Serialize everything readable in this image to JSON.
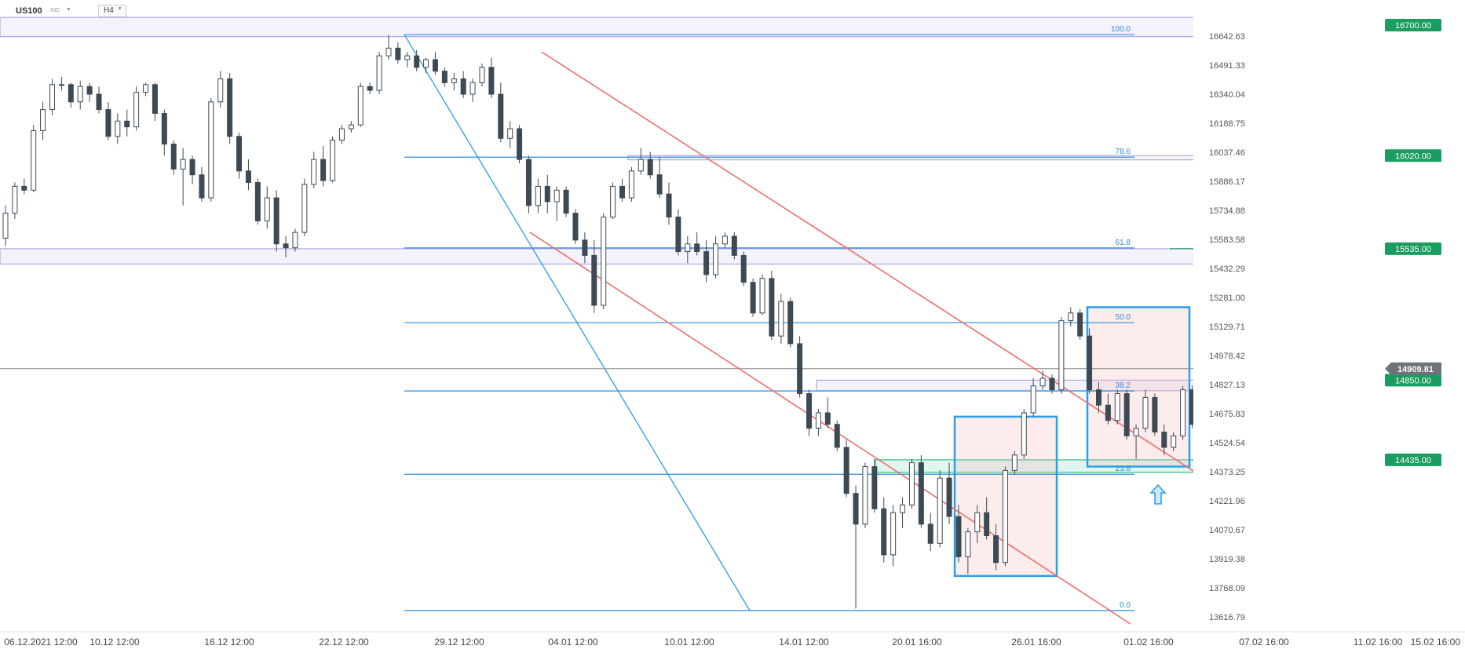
{
  "header": {
    "symbol": "US100",
    "market": "IND",
    "timeframe": "H4"
  },
  "chart_data": {
    "type": "candlestick",
    "ylim": [
      13616.79,
      16700
    ],
    "price_axis_ticks": [
      "16642.63",
      "16491.33",
      "16340.04",
      "16188.75",
      "16037.46",
      "15886.17",
      "15734.88",
      "15583.58",
      "15432.29",
      "15281.00",
      "15129.71",
      "14978.42",
      "14827.13",
      "14675.83",
      "14524.54",
      "14373.25",
      "14221.96",
      "14070.67",
      "13919.38",
      "13768.09",
      "13616.79"
    ],
    "time_axis_labels": [
      "06.12.2021 12:00",
      "10.12 12:00",
      "16.12 12:00",
      "22.12 12:00",
      "29.12 12:00",
      "04.01 12:00",
      "10.01 12:00",
      "14.01 12:00",
      "20.01 16:00",
      "26.01 16:00",
      "01.02 16:00",
      "07.02 16:00",
      "11.02 16:00",
      "15.02 16:00"
    ],
    "price_tags": [
      {
        "label": "16700.00",
        "value": 16700,
        "color": "#1a9d5f"
      },
      {
        "label": "16020.00",
        "value": 16020,
        "color": "#1a9d5f"
      },
      {
        "label": "15535.00",
        "value": 15535,
        "color": "#1a9d5f"
      },
      {
        "label": "14850.00",
        "value": 14850,
        "color": "#1a9d5f"
      },
      {
        "label": "14435.00",
        "value": 14435,
        "color": "#1a9d5f"
      }
    ],
    "current_price": {
      "label": "14909.81",
      "value": 14909.81,
      "color": "#6d7378"
    },
    "fibonacci": {
      "high": 16650,
      "low": 13650,
      "levels": [
        {
          "label": "100.0",
          "value": 16650
        },
        {
          "label": "78.6",
          "value": 16012
        },
        {
          "label": "61.8",
          "value": 15539
        },
        {
          "label": "50.0",
          "value": 15150
        },
        {
          "label": "38.2",
          "value": 14794
        },
        {
          "label": "23.6",
          "value": 14360
        },
        {
          "label": "0.0",
          "value": 13650
        }
      ]
    },
    "zones": [
      {
        "label": "resistance 16700",
        "from": 16640,
        "to": 16740,
        "color": "#b3a6e6"
      },
      {
        "label": "resistance 16020",
        "from": 15998,
        "to": 16020,
        "color": "#b3a6e6"
      },
      {
        "label": "resistance 15535",
        "from": 15455,
        "to": 15535,
        "color": "#b3a6e6"
      },
      {
        "label": "support 14850",
        "from": 14795,
        "to": 14850,
        "color": "#b3a6e6"
      },
      {
        "label": "support 14435",
        "from": 14370,
        "to": 14435,
        "color": "#2fc08a"
      }
    ],
    "boxes": [
      {
        "from": "23.01",
        "to": "30.01",
        "high": 14660,
        "low": 13830
      },
      {
        "from": "31.01",
        "to": "05.02",
        "high": 15230,
        "low": 14400
      }
    ],
    "candles": [
      [
        15590,
        15760,
        15550,
        15720
      ],
      [
        15720,
        15880,
        15690,
        15860
      ],
      [
        15860,
        15900,
        15820,
        15840
      ],
      [
        15840,
        16180,
        15830,
        16150
      ],
      [
        16150,
        16300,
        16100,
        16260
      ],
      [
        16260,
        16420,
        16230,
        16390
      ],
      [
        16390,
        16430,
        16360,
        16390
      ],
      [
        16390,
        16400,
        16270,
        16300
      ],
      [
        16300,
        16410,
        16260,
        16380
      ],
      [
        16380,
        16400,
        16300,
        16340
      ],
      [
        16340,
        16380,
        16240,
        16260
      ],
      [
        16260,
        16300,
        16100,
        16120
      ],
      [
        16120,
        16240,
        16080,
        16200
      ],
      [
        16200,
        16260,
        16120,
        16170
      ],
      [
        16170,
        16380,
        16150,
        16350
      ],
      [
        16350,
        16400,
        16330,
        16390
      ],
      [
        16390,
        16400,
        16200,
        16240
      ],
      [
        16240,
        16260,
        16020,
        16080
      ],
      [
        16080,
        16100,
        15920,
        15950
      ],
      [
        15950,
        16060,
        15760,
        16000
      ],
      [
        16000,
        16020,
        15870,
        15920
      ],
      [
        15920,
        15960,
        15780,
        15800
      ],
      [
        15800,
        16320,
        15780,
        16300
      ],
      [
        16300,
        16460,
        16270,
        16420
      ],
      [
        16420,
        16450,
        16080,
        16120
      ],
      [
        16120,
        16140,
        15900,
        15940
      ],
      [
        15940,
        16000,
        15840,
        15880
      ],
      [
        15880,
        15900,
        15660,
        15680
      ],
      [
        15680,
        15860,
        15640,
        15800
      ],
      [
        15800,
        15840,
        15520,
        15560
      ],
      [
        15560,
        15600,
        15490,
        15540
      ],
      [
        15540,
        15640,
        15520,
        15620
      ],
      [
        15620,
        15900,
        15600,
        15870
      ],
      [
        15870,
        16040,
        15850,
        16000
      ],
      [
        16000,
        16070,
        15860,
        15890
      ],
      [
        15890,
        16120,
        15880,
        16100
      ],
      [
        16100,
        16180,
        16080,
        16160
      ],
      [
        16160,
        16200,
        16140,
        16180
      ],
      [
        16180,
        16400,
        16170,
        16380
      ],
      [
        16380,
        16400,
        16340,
        16360
      ],
      [
        16360,
        16560,
        16340,
        16540
      ],
      [
        16540,
        16650,
        16520,
        16580
      ],
      [
        16580,
        16610,
        16500,
        16520
      ],
      [
        16520,
        16560,
        16480,
        16540
      ],
      [
        16540,
        16570,
        16460,
        16480
      ],
      [
        16480,
        16530,
        16450,
        16520
      ],
      [
        16520,
        16560,
        16440,
        16460
      ],
      [
        16460,
        16480,
        16380,
        16400
      ],
      [
        16400,
        16450,
        16360,
        16420
      ],
      [
        16420,
        16460,
        16320,
        16340
      ],
      [
        16340,
        16420,
        16300,
        16400
      ],
      [
        16400,
        16500,
        16380,
        16480
      ],
      [
        16480,
        16530,
        16320,
        16340
      ],
      [
        16340,
        16400,
        16090,
        16110
      ],
      [
        16110,
        16200,
        16060,
        16160
      ],
      [
        16160,
        16180,
        15980,
        16000
      ],
      [
        16000,
        16020,
        15720,
        15760
      ],
      [
        15760,
        15900,
        15720,
        15860
      ],
      [
        15860,
        15920,
        15720,
        15780
      ],
      [
        15780,
        15860,
        15680,
        15840
      ],
      [
        15840,
        15860,
        15700,
        15720
      ],
      [
        15720,
        15740,
        15560,
        15580
      ],
      [
        15580,
        15620,
        15460,
        15500
      ],
      [
        15500,
        15580,
        15200,
        15240
      ],
      [
        15240,
        15720,
        15220,
        15700
      ],
      [
        15700,
        15880,
        15690,
        15860
      ],
      [
        15860,
        15900,
        15780,
        15800
      ],
      [
        15800,
        15960,
        15780,
        15940
      ],
      [
        15940,
        16060,
        15920,
        16000
      ],
      [
        16000,
        16040,
        15900,
        15920
      ],
      [
        15920,
        16010,
        15800,
        15820
      ],
      [
        15820,
        15880,
        15660,
        15700
      ],
      [
        15700,
        15740,
        15500,
        15520
      ],
      [
        15520,
        15600,
        15460,
        15560
      ],
      [
        15560,
        15620,
        15500,
        15520
      ],
      [
        15520,
        15580,
        15360,
        15400
      ],
      [
        15400,
        15600,
        15380,
        15560
      ],
      [
        15560,
        15620,
        15540,
        15600
      ],
      [
        15600,
        15620,
        15480,
        15500
      ],
      [
        15500,
        15520,
        15340,
        15360
      ],
      [
        15360,
        15380,
        15180,
        15200
      ],
      [
        15200,
        15400,
        15190,
        15380
      ],
      [
        15380,
        15420,
        15060,
        15080
      ],
      [
        15080,
        15300,
        15040,
        15260
      ],
      [
        15260,
        15280,
        15020,
        15040
      ],
      [
        15040,
        15080,
        14760,
        14780
      ],
      [
        14780,
        14800,
        14560,
        14600
      ],
      [
        14600,
        14700,
        14560,
        14680
      ],
      [
        14680,
        14760,
        14600,
        14620
      ],
      [
        14620,
        14640,
        14480,
        14500
      ],
      [
        14500,
        14540,
        14240,
        14260
      ],
      [
        14260,
        14300,
        13660,
        14100
      ],
      [
        14100,
        14420,
        14080,
        14400
      ],
      [
        14400,
        14440,
        14160,
        14180
      ],
      [
        14180,
        14240,
        13900,
        13940
      ],
      [
        13940,
        14200,
        13880,
        14160
      ],
      [
        14160,
        14240,
        14080,
        14200
      ],
      [
        14200,
        14440,
        14180,
        14420
      ],
      [
        14420,
        14460,
        14080,
        14100
      ],
      [
        14100,
        14160,
        13960,
        14000
      ],
      [
        14000,
        14380,
        13980,
        14340
      ],
      [
        14340,
        14420,
        14100,
        14140
      ],
      [
        14140,
        14200,
        13900,
        13930
      ],
      [
        13930,
        14080,
        13840,
        14060
      ],
      [
        14060,
        14200,
        14000,
        14160
      ],
      [
        14160,
        14240,
        14020,
        14040
      ],
      [
        14040,
        14100,
        13860,
        13900
      ],
      [
        13900,
        14400,
        13880,
        14380
      ],
      [
        14380,
        14480,
        14360,
        14460
      ],
      [
        14460,
        14700,
        14440,
        14680
      ],
      [
        14680,
        14860,
        14660,
        14820
      ],
      [
        14820,
        14900,
        14800,
        14860
      ],
      [
        14860,
        14880,
        14780,
        14800
      ],
      [
        14800,
        15180,
        14780,
        15160
      ],
      [
        15160,
        15230,
        15130,
        15200
      ],
      [
        15200,
        15220,
        15060,
        15080
      ],
      [
        15080,
        15120,
        14780,
        14800
      ],
      [
        14800,
        14840,
        14680,
        14720
      ],
      [
        14720,
        14780,
        14620,
        14640
      ],
      [
        14640,
        14800,
        14620,
        14780
      ],
      [
        14780,
        14800,
        14540,
        14560
      ],
      [
        14560,
        14620,
        14440,
        14600
      ],
      [
        14600,
        14800,
        14580,
        14760
      ],
      [
        14760,
        14780,
        14560,
        14580
      ],
      [
        14580,
        14620,
        14460,
        14500
      ],
      [
        14500,
        14580,
        14480,
        14560
      ],
      [
        14560,
        14820,
        14540,
        14800
      ],
      [
        14800,
        14820,
        14600,
        14620
      ],
      [
        14620,
        14680,
        14480,
        14500
      ],
      [
        14500,
        14620,
        14460,
        14600
      ],
      [
        14600,
        14720,
        14580,
        14700
      ],
      [
        14700,
        14820,
        14680,
        14800
      ],
      [
        14800,
        14900,
        14790,
        14890
      ]
    ]
  }
}
